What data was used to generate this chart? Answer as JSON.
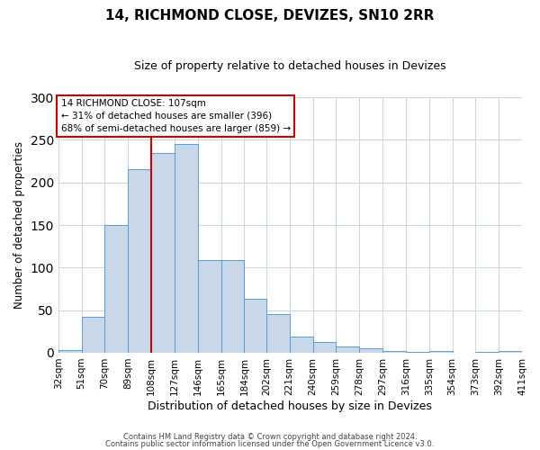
{
  "title": "14, RICHMOND CLOSE, DEVIZES, SN10 2RR",
  "subtitle": "Size of property relative to detached houses in Devizes",
  "xlabel": "Distribution of detached houses by size in Devizes",
  "ylabel": "Number of detached properties",
  "bar_color": "#c8d8e8",
  "bar_edge_color": "#5b9bd5",
  "background_color": "#ffffff",
  "grid_color": "#c8d4e8",
  "bin_edges": [
    32,
    51,
    70,
    89,
    108,
    127,
    146,
    165,
    184,
    202,
    221,
    240,
    259,
    278,
    297,
    316,
    335,
    354,
    373,
    392,
    411
  ],
  "bin_labels": [
    "32sqm",
    "51sqm",
    "70sqm",
    "89sqm",
    "108sqm",
    "127sqm",
    "146sqm",
    "165sqm",
    "184sqm",
    "202sqm",
    "221sqm",
    "240sqm",
    "259sqm",
    "278sqm",
    "297sqm",
    "316sqm",
    "335sqm",
    "354sqm",
    "373sqm",
    "392sqm",
    "411sqm"
  ],
  "bar_heights": [
    3,
    42,
    150,
    216,
    235,
    245,
    109,
    109,
    63,
    45,
    19,
    13,
    7,
    5,
    2,
    1,
    2,
    0,
    1,
    2
  ],
  "ylim": [
    0,
    300
  ],
  "yticks": [
    0,
    50,
    100,
    150,
    200,
    250,
    300
  ],
  "vline_x": 108,
  "vline_color": "#cc0000",
  "annotation_title": "14 RICHMOND CLOSE: 107sqm",
  "annotation_line1": "← 31% of detached houses are smaller (396)",
  "annotation_line2": "68% of semi-detached houses are larger (859) →",
  "footer_line1": "Contains HM Land Registry data © Crown copyright and database right 2024.",
  "footer_line2": "Contains public sector information licensed under the Open Government Licence v3.0."
}
